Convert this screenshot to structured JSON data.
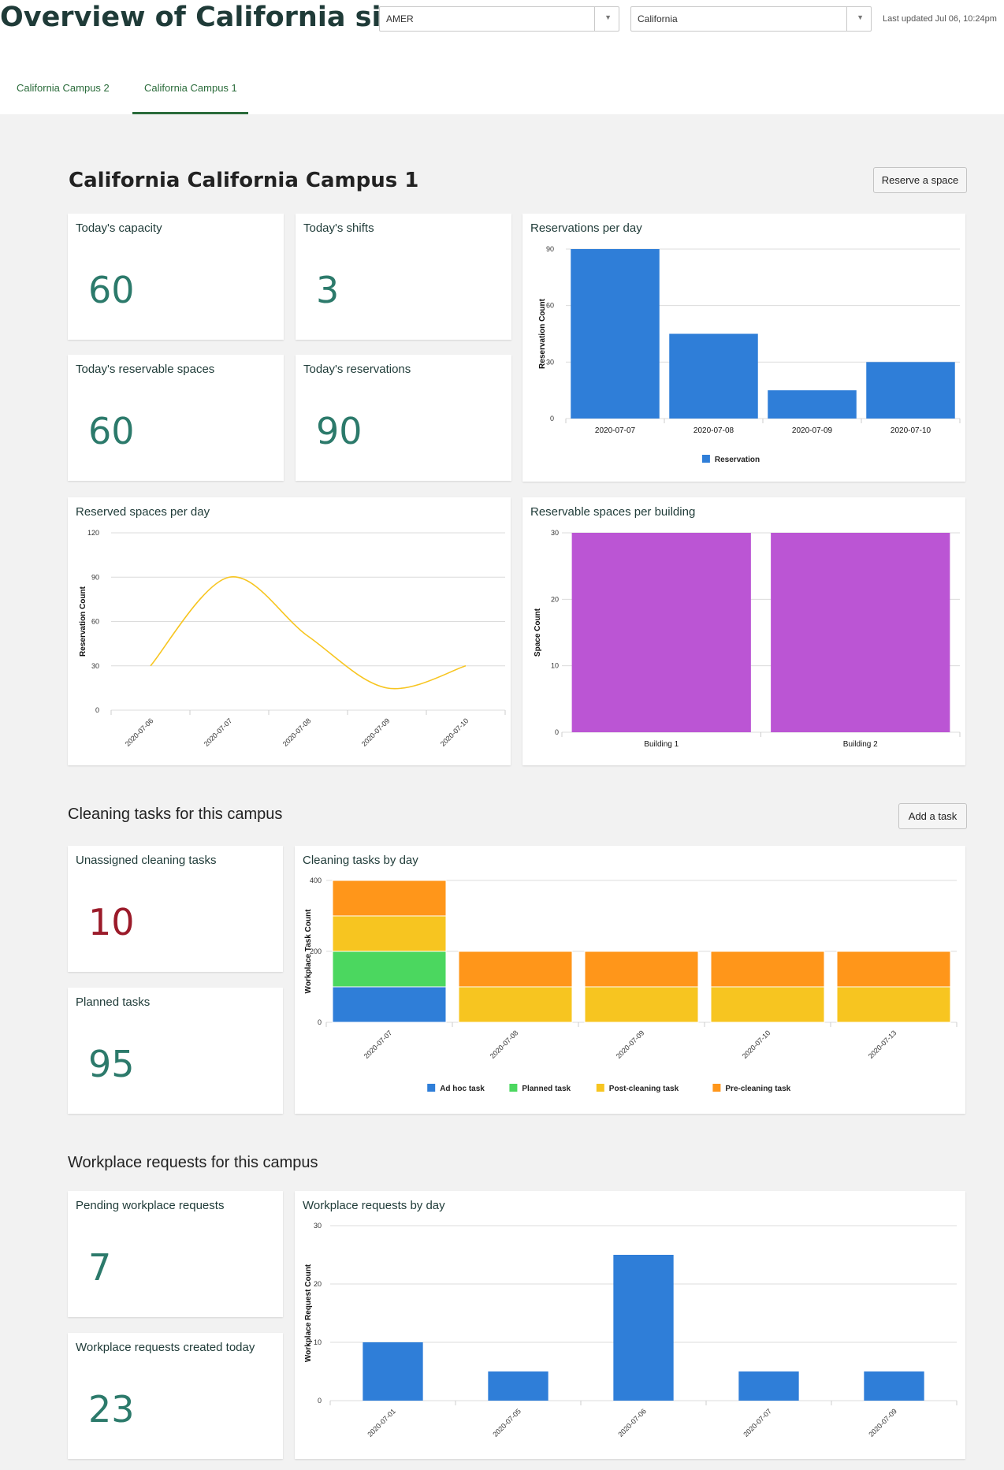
{
  "header": {
    "title": "Overview of California sites",
    "region_select": "AMER",
    "site_select": "California",
    "last_updated": "Last updated Jul 06, 10:24pm"
  },
  "tabs": [
    {
      "label": "California Campus 2",
      "active": false
    },
    {
      "label": "California Campus 1",
      "active": true
    }
  ],
  "campus": {
    "title": "California California Campus 1",
    "reserve_button": "Reserve a space",
    "kpis": {
      "capacity": {
        "label": "Today's capacity",
        "value": "60"
      },
      "shifts": {
        "label": "Today's shifts",
        "value": "3"
      },
      "reservable": {
        "label": "Today's reservable spaces",
        "value": "60"
      },
      "reservations": {
        "label": "Today's reservations",
        "value": "90"
      }
    },
    "charts_titles": {
      "reservations_per_day": "Reservations per day",
      "reserved_spaces_per_day": "Reserved spaces per day",
      "reservable_per_building": "Reservable spaces per building"
    }
  },
  "cleaning": {
    "title": "Cleaning tasks for this campus",
    "add_button": "Add a task",
    "unassigned": {
      "label": "Unassigned cleaning tasks",
      "value": "10"
    },
    "planned": {
      "label": "Planned tasks",
      "value": "95"
    },
    "chart_title": "Cleaning tasks by day"
  },
  "workplace": {
    "title": "Workplace requests for this campus",
    "pending": {
      "label": "Pending workplace requests",
      "value": "7"
    },
    "created_today": {
      "label": "Workplace requests created today",
      "value": "23"
    },
    "chart_title": "Workplace requests by day"
  },
  "colors": {
    "accent_green": "#2a6b3a",
    "kpi_teal": "#2c7a6b",
    "kpi_red": "#9b1b2a",
    "bar_blue": "#2f7ed8",
    "line_yellow": "#f7c520",
    "bar_purple": "#bb55d4",
    "green": "#4bd75f",
    "orange": "#ff961a"
  },
  "chart_data": [
    {
      "id": "reservations",
      "type": "bar",
      "title": "Reservations per day",
      "ylabel": "Reservation Count",
      "categories": [
        "2020-07-07",
        "2020-07-08",
        "2020-07-09",
        "2020-07-10"
      ],
      "series": [
        {
          "name": "Reservation",
          "values": [
            90,
            45,
            15,
            30
          ]
        }
      ],
      "ylim": [
        0,
        90
      ],
      "yticks": [
        0,
        30,
        60,
        90
      ],
      "legend": "bottom"
    },
    {
      "id": "reserved",
      "type": "line",
      "title": "Reserved spaces per day",
      "ylabel": "Reservation Count",
      "categories": [
        "2020-07-06",
        "2020-07-07",
        "2020-07-08",
        "2020-07-09",
        "2020-07-10"
      ],
      "series": [
        {
          "values": [
            30,
            90,
            50,
            15,
            30
          ]
        }
      ],
      "ylim": [
        0,
        120
      ],
      "yticks": [
        0,
        30,
        60,
        90,
        120
      ]
    },
    {
      "id": "building",
      "type": "bar",
      "title": "Reservable spaces per building",
      "ylabel": "Space Count",
      "categories": [
        "Building 1",
        "Building 2"
      ],
      "series": [
        {
          "values": [
            30,
            30
          ]
        }
      ],
      "ylim": [
        0,
        30
      ],
      "yticks": [
        0,
        10,
        20,
        30
      ]
    },
    {
      "id": "cleaning",
      "type": "bar",
      "stacked": true,
      "title": "Cleaning tasks by day",
      "ylabel": "Workplace Task Count",
      "categories": [
        "2020-07-07",
        "2020-07-08",
        "2020-07-09",
        "2020-07-10",
        "2020-07-13"
      ],
      "series": [
        {
          "name": "Ad hoc task",
          "values": [
            100,
            0,
            0,
            0,
            0
          ]
        },
        {
          "name": "Planned task",
          "values": [
            100,
            0,
            0,
            0,
            0
          ]
        },
        {
          "name": "Post-cleaning task",
          "values": [
            100,
            100,
            100,
            100,
            100
          ]
        },
        {
          "name": "Pre-cleaning task",
          "values": [
            100,
            100,
            100,
            100,
            100
          ]
        }
      ],
      "ylim": [
        0,
        400
      ],
      "yticks": [
        0,
        200,
        400
      ],
      "legend": "bottom"
    },
    {
      "id": "requests",
      "type": "bar",
      "title": "Workplace requests by day",
      "ylabel": "Workplace Request Count",
      "categories": [
        "2020-07-01",
        "2020-07-05",
        "2020-07-06",
        "2020-07-07",
        "2020-07-09"
      ],
      "series": [
        {
          "values": [
            10,
            5,
            25,
            5,
            5
          ]
        }
      ],
      "ylim": [
        0,
        30
      ],
      "yticks": [
        0,
        10,
        20,
        30
      ]
    }
  ]
}
